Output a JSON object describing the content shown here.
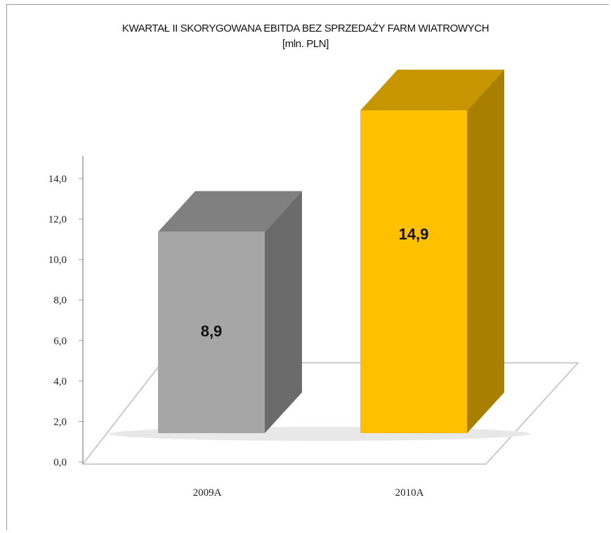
{
  "chart_data": {
    "type": "bar",
    "title": "KWARTAŁ II SKORYGOWANA EBITDA BEZ SPRZEDAŻY FARM WIATROWYCH",
    "subtitle": "[mln. PLN]",
    "categories": [
      "2009A",
      "2010A"
    ],
    "values": [
      8.9,
      14.9
    ],
    "value_labels": [
      "8,9",
      "14,9"
    ],
    "y_ticks": [
      "0,0",
      "2,0",
      "4,0",
      "6,0",
      "8,0",
      "10,0",
      "12,0",
      "14,0"
    ],
    "ylim": [
      0,
      14
    ],
    "xlabel": "",
    "ylabel": "",
    "grid": false,
    "style": "3d-column",
    "colors": {
      "2009A": {
        "front": "#a6a6a6",
        "side": "#6b6b6b",
        "top": "#808080"
      },
      "2010A": {
        "front": "#ffc000",
        "side": "#a97f00",
        "top": "#c79500"
      }
    }
  }
}
